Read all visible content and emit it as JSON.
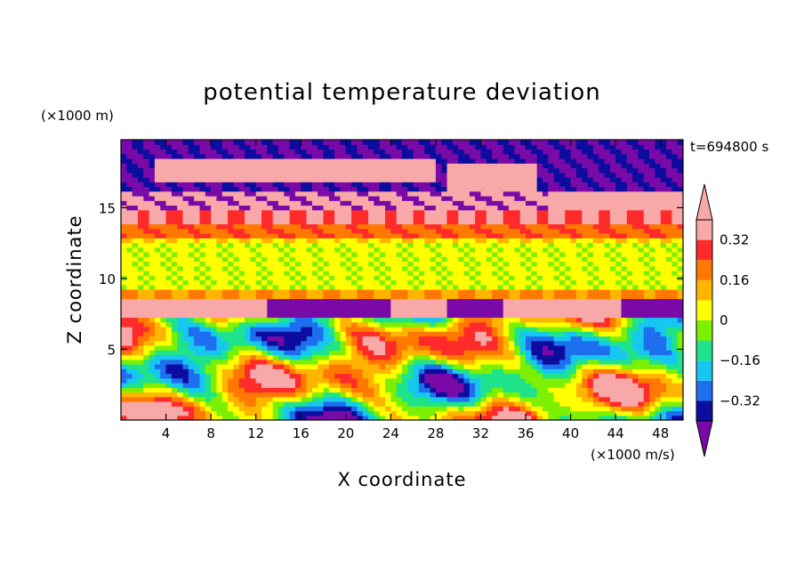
{
  "chart_data": {
    "type": "heatmap",
    "title": "potential temperature deviation",
    "xlabel": "X coordinate",
    "ylabel": "Z coordinate",
    "x_unit": "(×1000 m/s)",
    "y_unit": "(×1000 m)",
    "time_label": "t=694800 s",
    "xlim": [
      0,
      50
    ],
    "ylim": [
      0,
      19.8
    ],
    "x_ticks": [
      4,
      8,
      12,
      16,
      20,
      24,
      28,
      32,
      36,
      40,
      44,
      48
    ],
    "y_ticks": [
      5,
      10,
      15
    ],
    "colorbar": {
      "levels": [
        -0.4,
        -0.32,
        -0.24,
        -0.16,
        -0.08,
        0,
        0.08,
        0.16,
        0.24,
        0.32,
        0.4
      ],
      "tick_values": [
        0.32,
        0.16,
        0,
        -0.16,
        -0.32
      ],
      "tick_labels": [
        "0.32",
        "0.16",
        "0",
        "−0.16",
        "−0.32"
      ],
      "colors": [
        "#7a0aa8",
        "#0c0c9e",
        "#1e6ef0",
        "#16c8f0",
        "#1ee38a",
        "#7cf000",
        "#ffff00",
        "#ffb400",
        "#ff7800",
        "#ff2a2a",
        "#f8a8a8"
      ]
    }
  }
}
